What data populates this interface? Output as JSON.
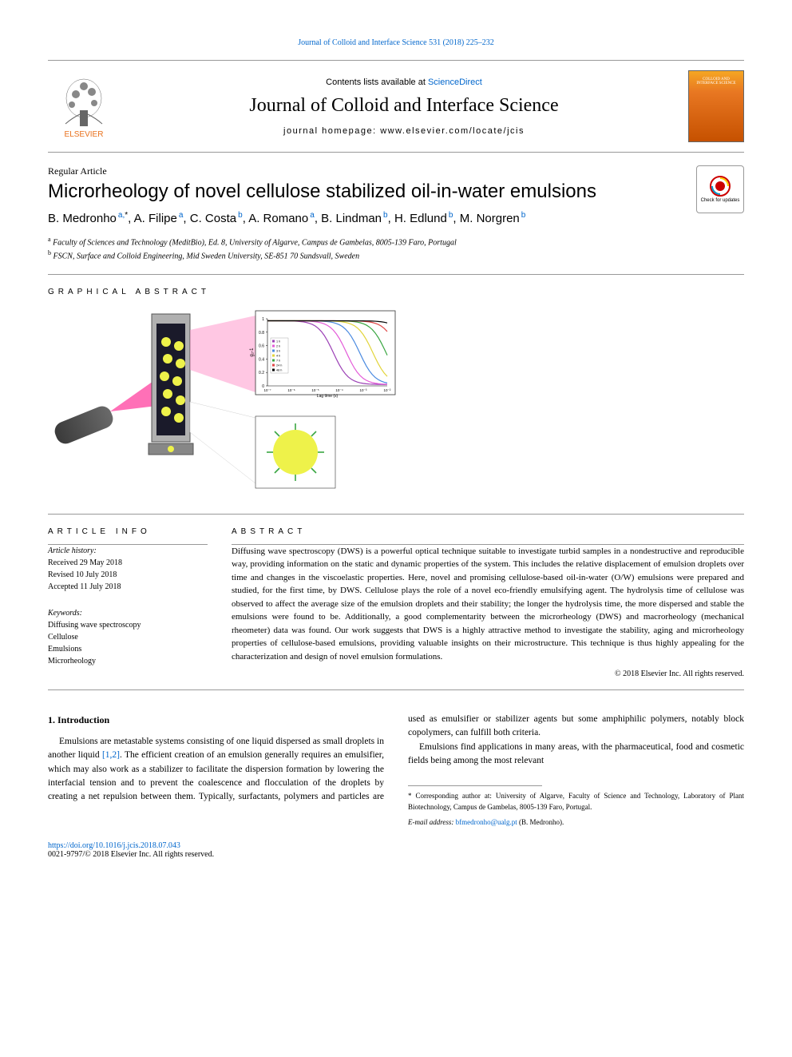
{
  "top_link": {
    "text": "Journal of Colloid and Interface Science 531 (2018) 225–232",
    "color": "#0066cc"
  },
  "header": {
    "contents_prefix": "Contents lists available at ",
    "contents_link": "ScienceDirect",
    "journal_title": "Journal of Colloid and Interface Science",
    "homepage_prefix": "journal homepage: ",
    "homepage_url": "www.elsevier.com/locate/jcis",
    "elsevier_label": "ELSEVIER",
    "cover_label": "COLLOID AND INTERFACE SCIENCE"
  },
  "article": {
    "type": "Regular Article",
    "title": "Microrheology of novel cellulose stabilized oil-in-water emulsions",
    "check_updates": "Check for updates"
  },
  "authors": [
    {
      "name": "B. Medronho",
      "aff": "a",
      "corr": true
    },
    {
      "name": "A. Filipe",
      "aff": "a"
    },
    {
      "name": "C. Costa",
      "aff": "b"
    },
    {
      "name": "A. Romano",
      "aff": "a"
    },
    {
      "name": "B. Lindman",
      "aff": "b"
    },
    {
      "name": "H. Edlund",
      "aff": "b"
    },
    {
      "name": "M. Norgren",
      "aff": "b"
    }
  ],
  "affiliations": [
    {
      "key": "a",
      "text": "Faculty of Sciences and Technology (MeditBio), Ed. 8, University of Algarve, Campus de Gambelas, 8005-139 Faro, Portugal"
    },
    {
      "key": "b",
      "text": "FSCN, Surface and Colloid Engineering, Mid Sweden University, SE-851 70 Sundsvall, Sweden"
    }
  ],
  "ga": {
    "label": "graphical abstract",
    "chart": {
      "ylim": [
        0,
        1
      ],
      "xlabel": "Lag time (s)",
      "yticks": [
        "0",
        "0.2",
        "0.4",
        "0.6",
        "0.8",
        "1"
      ],
      "xticks": [
        "10⁻⁷",
        "10⁻⁶",
        "10⁻⁵",
        "10⁻⁴",
        "10⁻³",
        "10⁻²"
      ],
      "series_colors": [
        "#9b3fb5",
        "#e35bd8",
        "#4a8ae0",
        "#e2d43a",
        "#3aa642",
        "#e04646",
        "#000000"
      ],
      "legend": [
        "1 h",
        "2 h",
        "3 h",
        "4 h",
        "7 h",
        "24 h",
        "48 h"
      ]
    }
  },
  "article_info": {
    "label": "article info",
    "history_label": "Article history:",
    "received": "Received 29 May 2018",
    "revised": "Revised 10 July 2018",
    "accepted": "Accepted 11 July 2018",
    "keywords_label": "Keywords:",
    "keywords": [
      "Diffusing wave spectroscopy",
      "Cellulose",
      "Emulsions",
      "Microrheology"
    ]
  },
  "abstract": {
    "label": "abstract",
    "text": "Diffusing wave spectroscopy (DWS) is a powerful optical technique suitable to investigate turbid samples in a nondestructive and reproducible way, providing information on the static and dynamic properties of the system. This includes the relative displacement of emulsion droplets over time and changes in the viscoelastic properties. Here, novel and promising cellulose-based oil-in-water (O/W) emulsions were prepared and studied, for the first time, by DWS. Cellulose plays the role of a novel eco-friendly emulsifying agent. The hydrolysis time of cellulose was observed to affect the average size of the emulsion droplets and their stability; the longer the hydrolysis time, the more dispersed and stable the emulsions were found to be. Additionally, a good complementarity between the microrheology (DWS) and macrorheology (mechanical rheometer) data was found. Our work suggests that DWS is a highly attractive method to investigate the stability, aging and microrheology properties of cellulose-based emulsions, providing valuable insights on their microstructure. This technique is thus highly appealing for the characterization and design of novel emulsion formulations.",
    "copyright": "© 2018 Elsevier Inc. All rights reserved."
  },
  "intro": {
    "heading": "1. Introduction",
    "para1_pre": "Emulsions are metastable systems consisting of one liquid dispersed as small droplets in another liquid ",
    "para1_ref": "[1,2]",
    "para1_post": ". The efficient creation of an emulsion generally requires an emulsifier, which may also work as a stabilizer to facilitate the dispersion formation by lowering the interfacial tension and to prevent the coalescence and flocculation of the droplets by creating a net repulsion between them. Typically, surfactants, polymers and particles are used as emulsifier or stabilizer agents but some amphiphilic polymers, notably block copolymers, can fulfill both criteria.",
    "para2": "Emulsions find applications in many areas, with the pharmaceutical, food and cosmetic fields being among the most relevant"
  },
  "footnotes": {
    "corr": "* Corresponding author at: University of Algarve, Faculty of Science and Technology, Laboratory of Plant Biotechnology, Campus de Gambelas, 8005-139 Faro, Portugal.",
    "email_label": "E-mail address: ",
    "email": "bfmedronho@ualg.pt",
    "email_name": " (B. Medronho)."
  },
  "doi": {
    "url": "https://doi.org/10.1016/j.jcis.2018.07.043",
    "issn": "0021-9797/© 2018 Elsevier Inc. All rights reserved."
  },
  "colors": {
    "link": "#0066cc",
    "elsevier_orange": "#e9711c",
    "rule": "#999999"
  }
}
